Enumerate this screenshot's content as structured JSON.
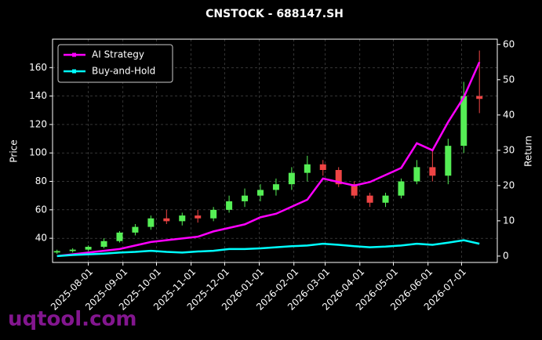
{
  "chart_data": {
    "type": "candlestick",
    "title": "CNSTOCK - 688147.SH",
    "ylabel": "Price",
    "y2label": "Return",
    "x": [
      "2025-07-04",
      "2025-07-18",
      "2025-08-01",
      "2025-08-15",
      "2025-08-29",
      "2025-09-12",
      "2025-09-26",
      "2025-10-10",
      "2025-10-24",
      "2025-11-07",
      "2025-11-21",
      "2025-12-05",
      "2025-12-19",
      "2026-01-02",
      "2026-01-16",
      "2026-01-30",
      "2026-02-13",
      "2026-02-27",
      "2026-03-13",
      "2026-03-27",
      "2026-04-10",
      "2026-04-24",
      "2026-05-08",
      "2026-05-22",
      "2026-06-05",
      "2026-06-19",
      "2026-07-03",
      "2026-07-17"
    ],
    "open": [
      30,
      31,
      32,
      34,
      38,
      44,
      48,
      54,
      52,
      56,
      54,
      60,
      66,
      70,
      74,
      78,
      86,
      92,
      88,
      78,
      70,
      65,
      70,
      80,
      90,
      84,
      105,
      140
    ],
    "high": [
      32,
      33,
      35,
      40,
      45,
      50,
      56,
      60,
      58,
      60,
      62,
      70,
      75,
      78,
      82,
      90,
      98,
      95,
      90,
      80,
      72,
      72,
      82,
      95,
      102,
      110,
      150,
      172
    ],
    "low": [
      29,
      30,
      31,
      33,
      37,
      42,
      46,
      50,
      49,
      51,
      52,
      58,
      62,
      66,
      70,
      74,
      80,
      84,
      76,
      68,
      62,
      62,
      68,
      78,
      80,
      78,
      100,
      128
    ],
    "close": [
      31,
      32,
      34,
      38,
      44,
      48,
      54,
      52,
      56,
      54,
      60,
      66,
      70,
      74,
      78,
      86,
      92,
      88,
      78,
      70,
      65,
      70,
      80,
      90,
      84,
      105,
      140,
      138
    ],
    "up_color": "#55ee55",
    "down_color": "#ee4444",
    "series": [
      {
        "name": "AI Strategy",
        "color": "#ff00ff",
        "axis": "y2",
        "values": [
          0,
          0.5,
          1,
          1.5,
          2,
          3,
          4,
          4.5,
          5,
          5.5,
          7,
          8,
          9,
          11,
          12,
          14,
          16,
          22,
          21,
          20,
          21,
          23,
          25,
          32,
          30,
          38,
          45,
          55
        ]
      },
      {
        "name": "Buy-and-Hold",
        "color": "#00ffff",
        "axis": "y2",
        "values": [
          0,
          0.3,
          0.5,
          0.7,
          1,
          1.2,
          1.5,
          1.2,
          1,
          1.3,
          1.5,
          2,
          2,
          2.2,
          2.5,
          2.8,
          3,
          3.5,
          3.2,
          2.8,
          2.5,
          2.7,
          3,
          3.5,
          3.2,
          3.8,
          4.5,
          3.5
        ]
      }
    ],
    "xlim": [
      "2025-06-30",
      "2026-08-02"
    ],
    "xticks": [
      "2025-08-01",
      "2025-09-01",
      "2025-10-01",
      "2025-11-01",
      "2025-12-01",
      "2026-01-01",
      "2026-02-01",
      "2026-03-01",
      "2026-04-01",
      "2026-05-01",
      "2026-06-01",
      "2026-07-01"
    ],
    "ylim": [
      23,
      180
    ],
    "yticks": [
      40,
      60,
      80,
      100,
      120,
      140,
      160
    ],
    "y2lim": [
      -1.8,
      61.5
    ],
    "y2ticks": [
      0,
      10,
      20,
      30,
      40,
      50,
      60
    ],
    "grid": true,
    "legend": "upper left"
  },
  "watermark": "uqtool.com"
}
